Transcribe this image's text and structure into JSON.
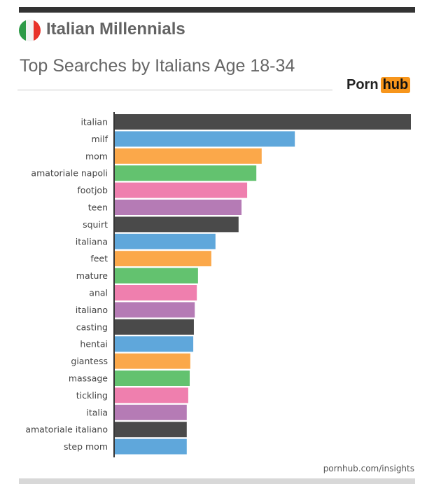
{
  "header": {
    "title": "Italian Millennials",
    "subtitle": "Top Searches by Italians Age 18-34",
    "flag_colors": [
      "#2e9a47",
      "#f2f2f2",
      "#e8322a"
    ]
  },
  "logo": {
    "part1": "Porn",
    "part2": "hub",
    "accent": "#f7961c"
  },
  "footer": {
    "source": "pornhub.com/insights"
  },
  "chart_data": {
    "type": "bar",
    "orientation": "horizontal",
    "title": "Top Searches by Italians Age 18-34",
    "value_scale": "relative (top = 100), no axis values shown",
    "categories": [
      "italian",
      "milf",
      "mom",
      "amatoriale napoli",
      "footjob",
      "teen",
      "squirt",
      "italiana",
      "feet",
      "mature",
      "anal",
      "italiano",
      "casting",
      "hentai",
      "giantess",
      "massage",
      "tickling",
      "italia",
      "amatoriale italiano",
      "step mom"
    ],
    "values": [
      100,
      60.8,
      49.6,
      47.8,
      44.7,
      42.8,
      41.8,
      34.0,
      32.6,
      28.1,
      27.7,
      27.0,
      26.7,
      26.5,
      25.5,
      25.3,
      24.8,
      24.3,
      24.3,
      24.3
    ],
    "colors": [
      "#4a4a4a",
      "#5fa7db",
      "#fba84a",
      "#63c26f",
      "#ef7fae",
      "#b57bb5"
    ],
    "grid": false
  }
}
